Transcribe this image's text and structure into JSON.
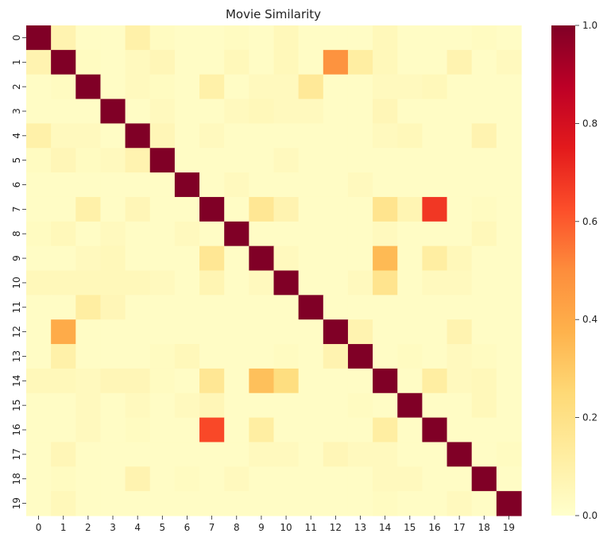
{
  "chart_data": {
    "type": "heatmap",
    "title": "Movie Similarity",
    "x_categories": [
      "0",
      "1",
      "2",
      "3",
      "4",
      "5",
      "6",
      "7",
      "8",
      "9",
      "10",
      "11",
      "12",
      "13",
      "14",
      "15",
      "16",
      "17",
      "18",
      "19"
    ],
    "y_categories": [
      "0",
      "1",
      "2",
      "3",
      "4",
      "5",
      "6",
      "7",
      "8",
      "9",
      "10",
      "11",
      "12",
      "13",
      "14",
      "15",
      "16",
      "17",
      "18",
      "19"
    ],
    "colormap": "YlOrRd",
    "colormap_stops": [
      "#ffffcc",
      "#ffeda0",
      "#fed976",
      "#feb24c",
      "#fd8d3c",
      "#fc4e2a",
      "#e31a1c",
      "#bd0026",
      "#800026"
    ],
    "vmin": 0.0,
    "vmax": 1.0,
    "colorbar_ticks": [
      "0.0",
      "0.2",
      "0.4",
      "0.6",
      "0.8",
      "1.0"
    ],
    "values": [
      [
        1.0,
        0.08,
        0.02,
        0.02,
        0.1,
        0.03,
        0.02,
        0.02,
        0.03,
        0.02,
        0.05,
        0.02,
        0.02,
        0.02,
        0.05,
        0.02,
        0.02,
        0.02,
        0.03,
        0.02
      ],
      [
        0.08,
        1.0,
        0.03,
        0.02,
        0.04,
        0.06,
        0.02,
        0.02,
        0.05,
        0.02,
        0.05,
        0.02,
        0.48,
        0.12,
        0.05,
        0.02,
        0.02,
        0.08,
        0.02,
        0.04
      ],
      [
        0.02,
        0.03,
        1.0,
        0.02,
        0.04,
        0.03,
        0.02,
        0.1,
        0.02,
        0.04,
        0.04,
        0.15,
        0.02,
        0.02,
        0.04,
        0.04,
        0.05,
        0.02,
        0.02,
        0.02
      ],
      [
        0.02,
        0.02,
        0.02,
        1.0,
        0.02,
        0.04,
        0.02,
        0.02,
        0.04,
        0.05,
        0.04,
        0.04,
        0.02,
        0.02,
        0.06,
        0.02,
        0.02,
        0.02,
        0.02,
        0.02
      ],
      [
        0.1,
        0.04,
        0.04,
        0.02,
        1.0,
        0.06,
        0.02,
        0.04,
        0.02,
        0.02,
        0.02,
        0.02,
        0.02,
        0.02,
        0.04,
        0.05,
        0.02,
        0.02,
        0.08,
        0.02
      ],
      [
        0.03,
        0.06,
        0.03,
        0.04,
        0.08,
        1.0,
        0.02,
        0.02,
        0.02,
        0.02,
        0.04,
        0.02,
        0.02,
        0.02,
        0.02,
        0.02,
        0.02,
        0.02,
        0.02,
        0.02
      ],
      [
        0.02,
        0.02,
        0.02,
        0.02,
        0.02,
        0.02,
        1.0,
        0.02,
        0.04,
        0.02,
        0.02,
        0.02,
        0.02,
        0.04,
        0.02,
        0.02,
        0.02,
        0.02,
        0.02,
        0.02
      ],
      [
        0.02,
        0.02,
        0.1,
        0.02,
        0.06,
        0.02,
        0.02,
        1.0,
        0.02,
        0.16,
        0.08,
        0.02,
        0.02,
        0.02,
        0.18,
        0.07,
        0.68,
        0.02,
        0.03,
        0.02
      ],
      [
        0.03,
        0.05,
        0.02,
        0.04,
        0.02,
        0.02,
        0.04,
        0.02,
        1.0,
        0.02,
        0.02,
        0.02,
        0.02,
        0.02,
        0.04,
        0.02,
        0.02,
        0.02,
        0.05,
        0.02
      ],
      [
        0.02,
        0.02,
        0.04,
        0.05,
        0.02,
        0.02,
        0.02,
        0.16,
        0.02,
        1.0,
        0.04,
        0.02,
        0.02,
        0.02,
        0.35,
        0.02,
        0.12,
        0.05,
        0.02,
        0.02
      ],
      [
        0.05,
        0.05,
        0.05,
        0.05,
        0.05,
        0.04,
        0.02,
        0.07,
        0.02,
        0.04,
        1.0,
        0.02,
        0.02,
        0.04,
        0.18,
        0.02,
        0.04,
        0.04,
        0.02,
        0.02
      ],
      [
        0.02,
        0.02,
        0.12,
        0.06,
        0.02,
        0.02,
        0.02,
        0.02,
        0.02,
        0.02,
        0.02,
        1.0,
        0.02,
        0.02,
        0.02,
        0.02,
        0.02,
        0.02,
        0.02,
        0.02
      ],
      [
        0.02,
        0.4,
        0.02,
        0.02,
        0.02,
        0.02,
        0.02,
        0.02,
        0.02,
        0.02,
        0.02,
        0.02,
        1.0,
        0.08,
        0.02,
        0.02,
        0.02,
        0.08,
        0.02,
        0.02
      ],
      [
        0.02,
        0.1,
        0.02,
        0.02,
        0.02,
        0.03,
        0.05,
        0.02,
        0.02,
        0.02,
        0.03,
        0.02,
        0.08,
        1.0,
        0.02,
        0.03,
        0.02,
        0.04,
        0.03,
        0.02
      ],
      [
        0.05,
        0.05,
        0.04,
        0.06,
        0.06,
        0.03,
        0.02,
        0.16,
        0.02,
        0.33,
        0.22,
        0.02,
        0.02,
        0.02,
        1.0,
        0.02,
        0.12,
        0.04,
        0.05,
        0.02
      ],
      [
        0.02,
        0.02,
        0.04,
        0.02,
        0.04,
        0.02,
        0.04,
        0.06,
        0.02,
        0.02,
        0.02,
        0.02,
        0.02,
        0.03,
        0.02,
        1.0,
        0.02,
        0.02,
        0.05,
        0.02
      ],
      [
        0.02,
        0.02,
        0.04,
        0.02,
        0.03,
        0.02,
        0.02,
        0.64,
        0.02,
        0.12,
        0.02,
        0.02,
        0.02,
        0.02,
        0.12,
        0.02,
        1.0,
        0.02,
        0.02,
        0.02
      ],
      [
        0.02,
        0.06,
        0.02,
        0.02,
        0.02,
        0.02,
        0.02,
        0.02,
        0.02,
        0.04,
        0.04,
        0.02,
        0.06,
        0.04,
        0.04,
        0.02,
        0.02,
        1.0,
        0.02,
        0.03
      ],
      [
        0.02,
        0.03,
        0.02,
        0.02,
        0.08,
        0.02,
        0.03,
        0.02,
        0.04,
        0.02,
        0.02,
        0.02,
        0.02,
        0.02,
        0.04,
        0.04,
        0.02,
        0.02,
        1.0,
        0.02
      ],
      [
        0.02,
        0.05,
        0.02,
        0.02,
        0.02,
        0.02,
        0.02,
        0.02,
        0.02,
        0.02,
        0.02,
        0.02,
        0.02,
        0.02,
        0.03,
        0.02,
        0.02,
        0.04,
        0.02,
        1.0
      ]
    ]
  }
}
